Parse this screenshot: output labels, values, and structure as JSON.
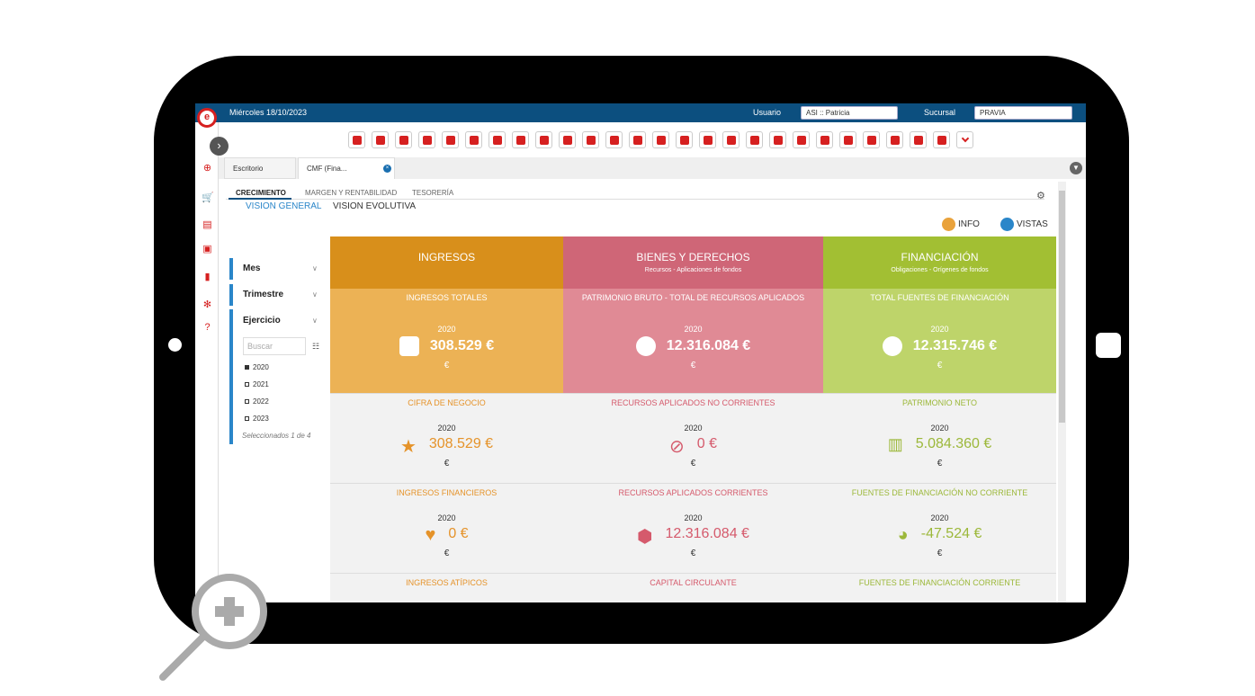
{
  "topbar": {
    "date": "Miércoles 18/10/2023",
    "user_label": "Usuario",
    "user_value": "ASI :: Patricia",
    "branch_label": "Sucursal",
    "branch_value": "PRAVIA"
  },
  "tabs": {
    "tab1": "Escritorio",
    "tab2": "CMF (Fina..."
  },
  "section_tabs": [
    "CRECIMIENTO",
    "MARGEN Y RENTABILIDAD",
    "TESORERÍA"
  ],
  "sub_tabs": [
    "VISION GENERAL",
    "VISION EVOLUTIVA"
  ],
  "buttons": {
    "info": "INFO",
    "vistas": "VISTAS"
  },
  "filters": {
    "mes": "Mes",
    "trimestre": "Trimestre",
    "ejercicio": "Ejercicio",
    "search_placeholder": "Buscar",
    "options": [
      "2020",
      "2021",
      "2022",
      "2023"
    ],
    "selected_text": "Seleccionados 1 de 4"
  },
  "columns": [
    {
      "title": "INGRESOS",
      "subtitle": "",
      "color": "#d88f1b",
      "big": {
        "label": "INGRESOS TOTALES",
        "year": "2020",
        "value": "308.529 €",
        "unit": "€",
        "color": "#ecb255"
      },
      "cells": [
        {
          "label": "CIFRA DE NEGOCIO",
          "year": "2020",
          "value": "308.529 €",
          "unit": "€"
        },
        {
          "label": "INGRESOS FINANCIEROS",
          "year": "2020",
          "value": "0 €",
          "unit": "€"
        },
        {
          "label": "INGRESOS ATÍPICOS"
        }
      ]
    },
    {
      "title": "BIENES Y DERECHOS",
      "subtitle": "Recursos - Aplicaciones de fondos",
      "color": "#cf6677",
      "big": {
        "label": "PATRIMONIO BRUTO - TOTAL DE RECURSOS APLICADOS",
        "year": "2020",
        "value": "12.316.084 €",
        "unit": "€",
        "color": "#e08a95"
      },
      "cells": [
        {
          "label": "RECURSOS APLICADOS NO CORRIENTES",
          "year": "2020",
          "value": "0 €",
          "unit": "€"
        },
        {
          "label": "RECURSOS APLICADOS CORRIENTES",
          "year": "2020",
          "value": "12.316.084 €",
          "unit": "€"
        },
        {
          "label": "CAPITAL CIRCULANTE"
        }
      ]
    },
    {
      "title": "FINANCIACIÓN",
      "subtitle": "Obligaciones - Orígenes de fondos",
      "color": "#a2bf33",
      "big": {
        "label": "TOTAL FUENTES DE FINANCIACIÓN",
        "year": "2020",
        "value": "12.315.746 €",
        "unit": "€",
        "color": "#bed46a"
      },
      "cells": [
        {
          "label": "PATRIMONIO NETO",
          "year": "2020",
          "value": "5.084.360 €",
          "unit": "€"
        },
        {
          "label": "FUENTES DE FINANCIACIÓN NO CORRIENTE",
          "year": "2020",
          "value": "-47.524 €",
          "unit": "€"
        },
        {
          "label": "FUENTES DE FINANCIACIÓN CORRIENTE"
        }
      ]
    }
  ]
}
